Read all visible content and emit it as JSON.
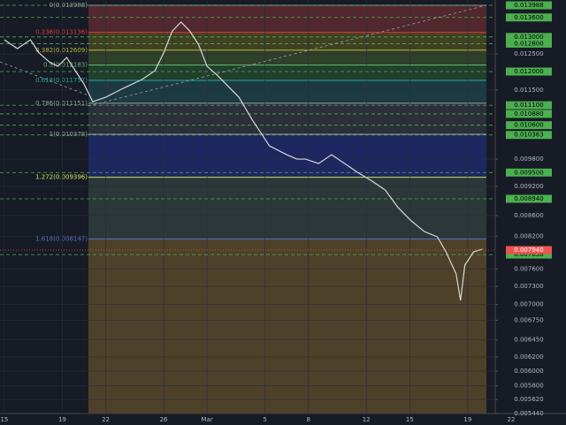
{
  "chart_data": {
    "type": "line",
    "log_scale": true,
    "grid": true,
    "ylim": [
      0.00544,
      0.013988
    ],
    "xlim": [
      -0.3,
      33.9
    ],
    "xticks": [
      {
        "value": 0,
        "label": "15"
      },
      {
        "value": 4,
        "label": "19"
      },
      {
        "value": 7,
        "label": "22"
      },
      {
        "value": 11,
        "label": "26"
      },
      {
        "value": 14,
        "label": "Mar"
      },
      {
        "value": 18,
        "label": "5"
      },
      {
        "value": 21,
        "label": "8"
      },
      {
        "value": 25,
        "label": "12"
      },
      {
        "value": 28,
        "label": "15"
      },
      {
        "value": 32,
        "label": "19"
      },
      {
        "value": 35,
        "label": "22"
      }
    ],
    "yticks": [
      {
        "value": 0.0125,
        "label": "0.012500"
      },
      {
        "value": 0.0115,
        "label": "0.011500"
      },
      {
        "value": 0.0098,
        "label": "0.009800"
      },
      {
        "value": 0.0092,
        "label": "0.009200"
      },
      {
        "value": 0.0086,
        "label": "0.008600"
      },
      {
        "value": 0.0082,
        "label": "0.008200"
      },
      {
        "value": 0.0076,
        "label": "0.007600"
      },
      {
        "value": 0.0073,
        "label": "0.007300"
      },
      {
        "value": 0.007,
        "label": "0.007000"
      },
      {
        "value": 0.00675,
        "label": "0.006750"
      },
      {
        "value": 0.00645,
        "label": "0.006450"
      },
      {
        "value": 0.0062,
        "label": "0.006200"
      },
      {
        "value": 0.006,
        "label": "0.006000"
      },
      {
        "value": 0.0058,
        "label": "0.005800"
      },
      {
        "value": 0.00562,
        "label": "0.005620"
      },
      {
        "value": 0.00544,
        "label": "0.005440"
      }
    ],
    "levels_color": "#4caf50",
    "levels": [
      0.013988,
      {
        "value": 0.0136,
        "label": "0.013600"
      },
      {
        "value": 0.013,
        "label": "0.013000"
      },
      {
        "value": 0.0128,
        "label": "0.012800"
      },
      {
        "value": 0.012,
        "label": "0.012000"
      },
      {
        "value": 0.0111,
        "label": "0.011100"
      },
      {
        "value": 0.01088,
        "label": "0.010880"
      },
      {
        "value": 0.0106,
        "label": "0.010600"
      },
      0.010363,
      {
        "value": 0.0095,
        "label": "0.009500"
      },
      {
        "value": 0.00894,
        "label": "0.008940"
      },
      0.007858
    ],
    "last_price": {
      "value": 0.00794,
      "label": "0.007940",
      "color": "#ef5350"
    },
    "fib": [
      {
        "label": "0(0.013988)",
        "value": 0.013988,
        "color": "#9e9e9e",
        "fill": "#5a2a30"
      },
      {
        "label": "0.236(0.013136)",
        "value": 0.013136,
        "color": "#e53935",
        "fill": "#484622"
      },
      {
        "label": "0.382(0.012609)",
        "value": 0.012609,
        "color": "#b5b53a",
        "fill": "#33482a"
      },
      {
        "label": "0.5(0.012183)",
        "value": 0.012183,
        "color": "#66bb6a",
        "fill": "#23452f"
      },
      {
        "label": "0.618(0.011757)",
        "value": 0.011757,
        "color": "#26a69a",
        "fill": "#1d3f48"
      },
      {
        "label": "0.786(0.011151)",
        "value": 0.011151,
        "color": "#9e9e9e",
        "fill": "#2e323d"
      },
      {
        "label": "1(0.010378)",
        "value": 0.010378,
        "color": "#9e9e9e",
        "fill": "#1f2a6c"
      },
      {
        "label": "1.272(0.009396)",
        "value": 0.009396,
        "color": "#d4e157",
        "fill": "#2f3c3c"
      },
      {
        "label": "1.618(0.008147)",
        "value": 0.008147,
        "color": "#5c6bc0",
        "fill": "#58482a"
      }
    ],
    "series": [
      {
        "name": "price",
        "color": "#d8d8d8",
        "x": [
          0,
          0.9,
          1.8,
          2.4,
          3.1,
          3.7,
          4.3,
          4.9,
          5.5,
          6.1,
          7.0,
          8.2,
          9.5,
          10.4,
          11.0,
          11.6,
          12.2,
          12.8,
          13.4,
          14.0,
          14.7,
          15.3,
          16.2,
          17.1,
          17.7,
          18.3,
          18.9,
          19.5,
          20.2,
          20.8,
          21.7,
          22.6,
          23.5,
          24.4,
          25.4,
          26.3,
          27.2,
          28.1,
          29.0,
          29.9,
          30.5,
          31.2,
          31.5,
          31.8,
          32.4,
          33.0
        ],
        "values": [
          0.012915,
          0.012655,
          0.012915,
          0.012526,
          0.012272,
          0.012147,
          0.012398,
          0.012024,
          0.01166,
          0.011193,
          0.011308,
          0.011542,
          0.011781,
          0.012024,
          0.012526,
          0.013182,
          0.013455,
          0.013182,
          0.012784,
          0.012147,
          0.011901,
          0.01166,
          0.011308,
          0.010744,
          0.01042,
          0.010105,
          0.010003,
          0.009901,
          0.0098,
          0.0098,
          0.009699,
          0.009901,
          0.009699,
          0.009503,
          0.009312,
          0.009123,
          0.008758,
          0.008494,
          0.008288,
          0.008186,
          0.007906,
          0.007512,
          0.007066,
          0.007667,
          0.007906,
          0.007955
        ]
      }
    ]
  }
}
